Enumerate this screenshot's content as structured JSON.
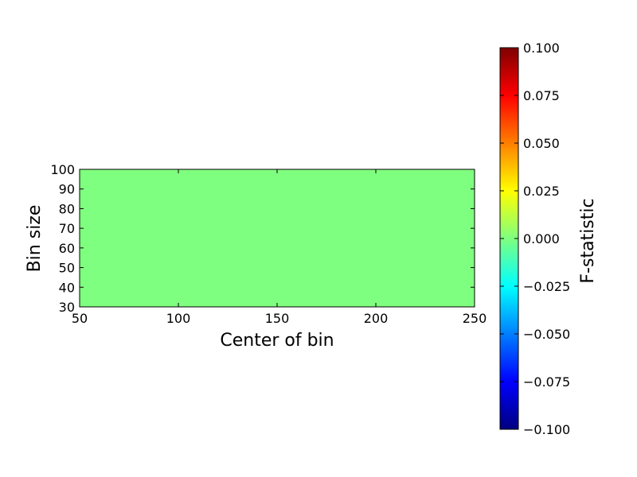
{
  "chart_data": {
    "type": "heatmap",
    "title": "",
    "xlabel": "Center of bin",
    "ylabel": "Bin size",
    "xlim": [
      50,
      250
    ],
    "ylim": [
      30,
      100
    ],
    "xticks": [
      50,
      100,
      150,
      200,
      250
    ],
    "yticks": [
      30,
      40,
      50,
      60,
      70,
      80,
      90,
      100
    ],
    "grid": false,
    "values": [
      [
        0
      ]
    ],
    "fill_color": "#7fff7f",
    "colorbar": {
      "label": "F-statistic",
      "colormap": "jet",
      "range": [
        -0.1,
        0.1
      ],
      "ticks": [
        -0.1,
        -0.075,
        -0.05,
        -0.025,
        0,
        0.025,
        0.05,
        0.075,
        0.1
      ],
      "tick_labels": [
        "−0.100",
        "−0.075",
        "−0.050",
        "−0.025",
        "0.000",
        "0.025",
        "0.050",
        "0.075",
        "0.100"
      ],
      "stops": [
        "#00007f",
        "#0000ff",
        "#007fff",
        "#00ffff",
        "#7fff7f",
        "#ffff00",
        "#ff7f00",
        "#ff0000",
        "#7f0000"
      ]
    }
  }
}
